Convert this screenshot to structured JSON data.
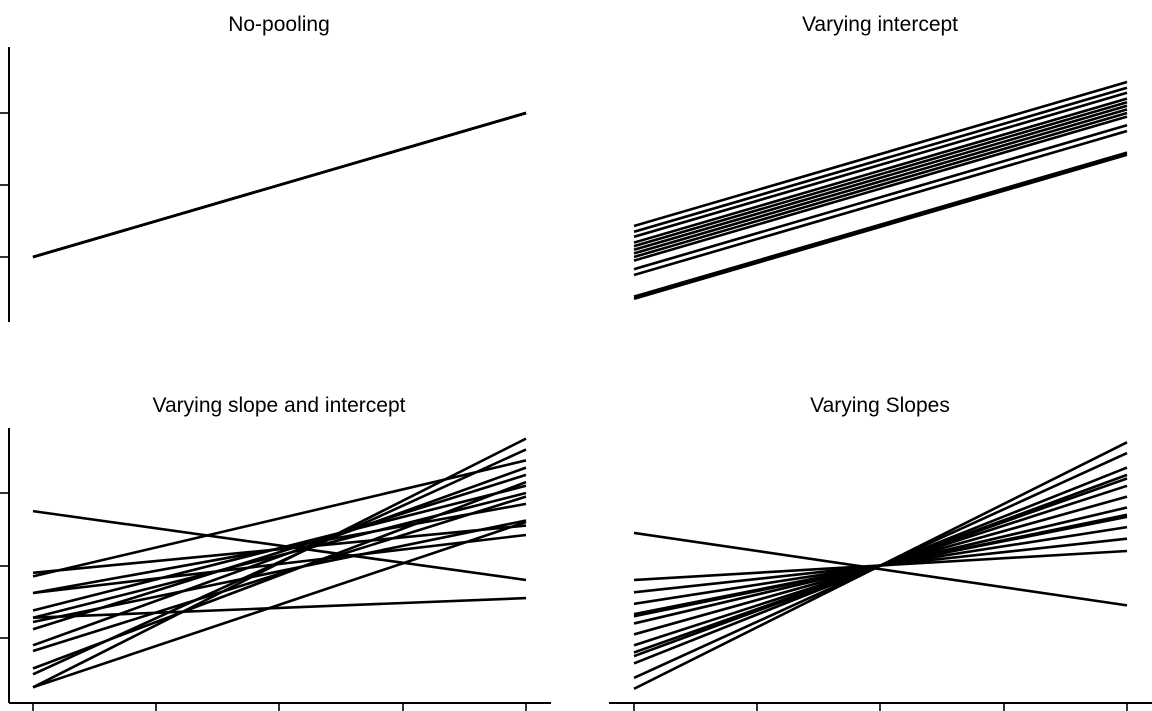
{
  "chart_data": [
    {
      "type": "line",
      "title": "No-pooling",
      "xlabel": "",
      "ylabel": "",
      "xlim": [
        0,
        4
      ],
      "ylim": [
        -0.8,
        2.9
      ],
      "grid": false,
      "x": [
        0,
        4
      ],
      "series": [
        {
          "values": [
            0.0,
            2.0
          ]
        },
        {
          "values": [
            0.0,
            2.0
          ]
        },
        {
          "values": [
            0.0,
            2.0
          ]
        },
        {
          "values": [
            0.0,
            2.0
          ]
        },
        {
          "values": [
            0.0,
            2.0
          ]
        },
        {
          "values": [
            0.0,
            2.0
          ]
        }
      ]
    },
    {
      "type": "line",
      "title": "Varying intercept",
      "xlabel": "",
      "ylabel": "",
      "xlim": [
        0,
        4
      ],
      "ylim": [
        -0.8,
        2.9
      ],
      "grid": false,
      "x": [
        0,
        4
      ],
      "series": [
        {
          "values": [
            0.43,
            2.43
          ]
        },
        {
          "values": [
            0.35,
            2.35
          ]
        },
        {
          "values": [
            0.28,
            2.28
          ]
        },
        {
          "values": [
            0.2,
            2.2
          ]
        },
        {
          "values": [
            0.15,
            2.15
          ]
        },
        {
          "values": [
            0.1,
            2.1
          ]
        },
        {
          "values": [
            0.05,
            2.05
          ]
        },
        {
          "values": [
            0.0,
            2.0
          ]
        },
        {
          "values": [
            -0.05,
            1.95
          ]
        },
        {
          "values": [
            -0.17,
            1.83
          ]
        },
        {
          "values": [
            -0.25,
            1.75
          ]
        },
        {
          "values": [
            -0.55,
            1.45
          ]
        },
        {
          "values": [
            -0.58,
            1.42
          ]
        }
      ]
    },
    {
      "type": "line",
      "title": "Varying slope and intercept",
      "xlabel": "",
      "ylabel": "",
      "xlim": [
        0,
        4
      ],
      "ylim": [
        -0.8,
        2.9
      ],
      "grid": false,
      "x": [
        0,
        4
      ],
      "series": [
        {
          "values": [
            1.75,
            0.8
          ]
        },
        {
          "values": [
            0.9,
            1.55
          ]
        },
        {
          "values": [
            0.85,
            2.45
          ]
        },
        {
          "values": [
            0.62,
            1.85
          ]
        },
        {
          "values": [
            0.62,
            1.42
          ]
        },
        {
          "values": [
            0.38,
            2.1
          ]
        },
        {
          "values": [
            0.28,
            2.0
          ]
        },
        {
          "values": [
            0.28,
            0.55
          ]
        },
        {
          "values": [
            0.22,
            1.62
          ]
        },
        {
          "values": [
            0.12,
            2.25
          ]
        },
        {
          "values": [
            -0.1,
            2.35
          ]
        },
        {
          "values": [
            -0.18,
            1.95
          ]
        },
        {
          "values": [
            -0.42,
            2.15
          ]
        },
        {
          "values": [
            -0.5,
            2.6
          ]
        },
        {
          "values": [
            -0.68,
            2.75
          ]
        },
        {
          "values": [
            -0.68,
            1.6
          ]
        }
      ]
    },
    {
      "type": "line",
      "title": "Varying Slopes",
      "xlabel": "",
      "ylabel": "",
      "xlim": [
        0,
        4
      ],
      "ylim": [
        -0.8,
        2.9
      ],
      "grid": false,
      "x": [
        0,
        4
      ],
      "series": [
        {
          "values": [
            1.45,
            0.45
          ]
        },
        {
          "values": [
            0.8,
            1.2
          ]
        },
        {
          "values": [
            0.63,
            1.37
          ]
        },
        {
          "values": [
            0.47,
            1.53
          ]
        },
        {
          "values": [
            0.33,
            1.67
          ]
        },
        {
          "values": [
            0.3,
            1.7
          ]
        },
        {
          "values": [
            0.2,
            1.8
          ]
        },
        {
          "values": [
            0.05,
            1.95
          ]
        },
        {
          "values": [
            -0.1,
            2.1
          ]
        },
        {
          "values": [
            -0.2,
            2.2
          ]
        },
        {
          "values": [
            -0.25,
            2.25
          ]
        },
        {
          "values": [
            -0.35,
            2.35
          ]
        },
        {
          "values": [
            -0.55,
            2.55
          ]
        },
        {
          "values": [
            -0.7,
            2.7
          ]
        }
      ]
    }
  ]
}
